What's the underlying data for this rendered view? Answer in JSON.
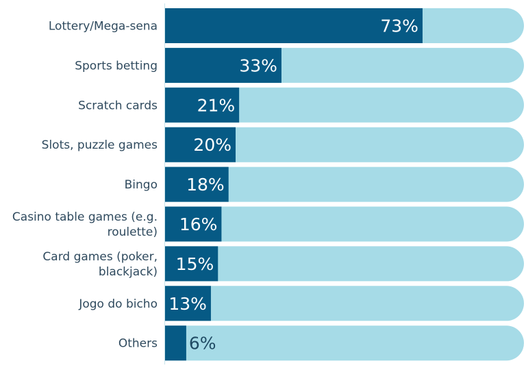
{
  "chart_data": {
    "type": "bar",
    "orientation": "horizontal",
    "title": "",
    "xlabel": "",
    "ylabel": "",
    "xlim": [
      0,
      100
    ],
    "grid": false,
    "legend": "none",
    "value_suffix": "%",
    "categories": [
      [
        "Lottery/Mega-sena"
      ],
      [
        "Sports betting"
      ],
      [
        "Scratch cards"
      ],
      [
        "Slots, puzzle games"
      ],
      [
        "Bingo"
      ],
      [
        "Casino table games (e.g.",
        "roulette)"
      ],
      [
        "Card games (poker,",
        "blackjack)"
      ],
      [
        "Jogo do bicho"
      ],
      [
        "Others"
      ]
    ],
    "values": [
      73,
      33,
      21,
      20,
      18,
      16,
      15,
      13,
      6
    ],
    "colors": {
      "bar": "#065a85",
      "track": "#a6dbe7",
      "label_inside": "#ffffff",
      "label_outside": "#1f4a63",
      "category_text": "#2f4a5e",
      "axis": "#c8e4ec"
    }
  }
}
